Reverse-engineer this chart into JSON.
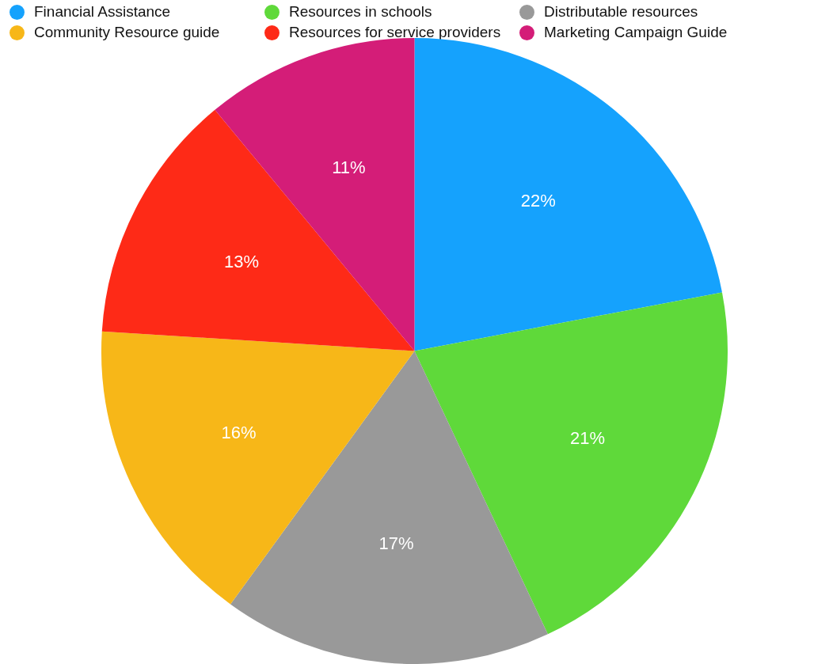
{
  "chart_data": {
    "type": "pie",
    "categories": [
      "Financial Assistance",
      "Resources in schools",
      "Distributable resources",
      "Community Resource guide",
      "Resources for service providers",
      "Marketing Campaign Guide"
    ],
    "values": [
      22,
      21,
      17,
      16,
      13,
      11
    ],
    "colors": [
      "#15a2fd",
      "#5fd93a",
      "#999999",
      "#f7b718",
      "#fe2a17",
      "#d41d78"
    ],
    "value_labels": [
      "22%",
      "21%",
      "17%",
      "16%",
      "13%",
      "11%"
    ],
    "legend": "top"
  }
}
